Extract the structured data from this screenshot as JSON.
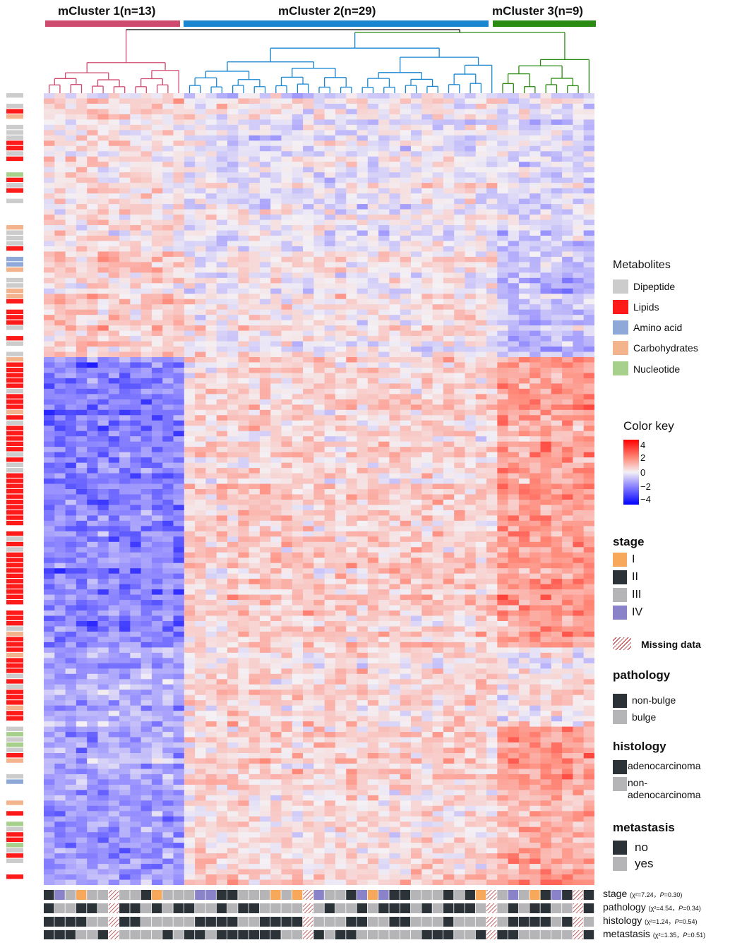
{
  "clusters": [
    {
      "label": "mCluster 1(n=13)",
      "color": "#cf4a6f",
      "n": 13
    },
    {
      "label": "mCluster 2(n=29)",
      "color": "#1a86d0",
      "n": 29
    },
    {
      "label": "mCluster 3(n=9)",
      "color": "#2a8a12",
      "n": 9
    }
  ],
  "dendrogram_colors": {
    "root": "#000000"
  },
  "legend": {
    "metabolites": {
      "title": "Metabolites",
      "items": [
        {
          "label": "Dipeptide",
          "color": "#cccccc"
        },
        {
          "label": "Lipids",
          "color": "#ff1a1a"
        },
        {
          "label": "Amino acid",
          "color": "#8ea9d8"
        },
        {
          "label": "Carbohydrates",
          "color": "#f3b48d"
        },
        {
          "label": "Nucleotide",
          "color": "#a8d08d"
        }
      ]
    },
    "color_key": {
      "title": "Color key",
      "ticks": [
        "4",
        "2",
        "0",
        "−2",
        "−4"
      ],
      "high_color": "#ff0000",
      "mid_color": "#f4f0f4",
      "low_color": "#0000ff"
    },
    "stage": {
      "title": "stage",
      "items": [
        {
          "label": "I",
          "color": "#f7a85a"
        },
        {
          "label": "II",
          "color": "#2b3238"
        },
        {
          "label": "III",
          "color": "#b5b5b8"
        },
        {
          "label": "IV",
          "color": "#8a83c9"
        }
      ]
    },
    "missing": {
      "label": "Missing data",
      "color": "#b03030"
    },
    "pathology": {
      "title": "pathology",
      "items": [
        {
          "label": "non-bulge",
          "color": "#2b3238"
        },
        {
          "label": "bulge",
          "color": "#b5b5b8"
        }
      ]
    },
    "histology": {
      "title": "histology",
      "items": [
        {
          "label": "adenocarcinoma",
          "color": "#2b3238"
        },
        {
          "label": "non-adenocarcinoma",
          "line1": "non-",
          "line2": "adenocarcinoma",
          "color": "#b5b5b8"
        }
      ]
    },
    "metastasis": {
      "title": "metastasis",
      "items": [
        {
          "label": "no",
          "color": "#2b3238"
        },
        {
          "label": "yes",
          "color": "#b5b5b8"
        }
      ]
    }
  },
  "annotation_rows": [
    {
      "name": "stage",
      "chi_label": "(χ²=7.24，",
      "p_prefix": "P",
      "p_value": "=0.30)"
    },
    {
      "name": "pathology",
      "chi_label": "(χ²=4.54，",
      "p_prefix": "P",
      "p_value": "=0.34)"
    },
    {
      "name": "histology",
      "chi_label": "(χ²=1.24，",
      "p_prefix": "P",
      "p_value": "=0.54)"
    },
    {
      "name": "metastasis",
      "chi_label": "(χ²=1.35，",
      "p_prefix": "P",
      "p_value": "=0.51)"
    }
  ],
  "chart_data": {
    "type": "heatmap",
    "title": "",
    "n_samples": 51,
    "n_rows": 150,
    "value_range": [
      -4,
      4
    ],
    "column_groups": [
      "mCluster 1",
      "mCluster 2",
      "mCluster 3"
    ],
    "row_blocks": [
      {
        "rows": 30,
        "cluster_means": [
          0.3,
          -0.2,
          -0.5
        ],
        "category": "mixed"
      },
      {
        "rows": 20,
        "cluster_means": [
          0.6,
          0.1,
          -1.0
        ],
        "category": "mixed"
      },
      {
        "rows": 55,
        "cluster_means": [
          -2.0,
          0.6,
          1.6
        ],
        "category": "lipids"
      },
      {
        "rows": 15,
        "cluster_means": [
          -1.2,
          0.5,
          0.2
        ],
        "category": "lipids"
      },
      {
        "rows": 30,
        "cluster_means": [
          -1.6,
          0.4,
          1.3
        ],
        "category": "mixed"
      }
    ],
    "annotation_legend": {
      "stage": [
        "I",
        "II",
        "III",
        "IV"
      ],
      "pathology": [
        "non-bulge",
        "bulge"
      ],
      "histology": [
        "adenocarcinoma",
        "non-adenocarcinoma"
      ],
      "metastasis": [
        "no",
        "yes"
      ]
    }
  }
}
